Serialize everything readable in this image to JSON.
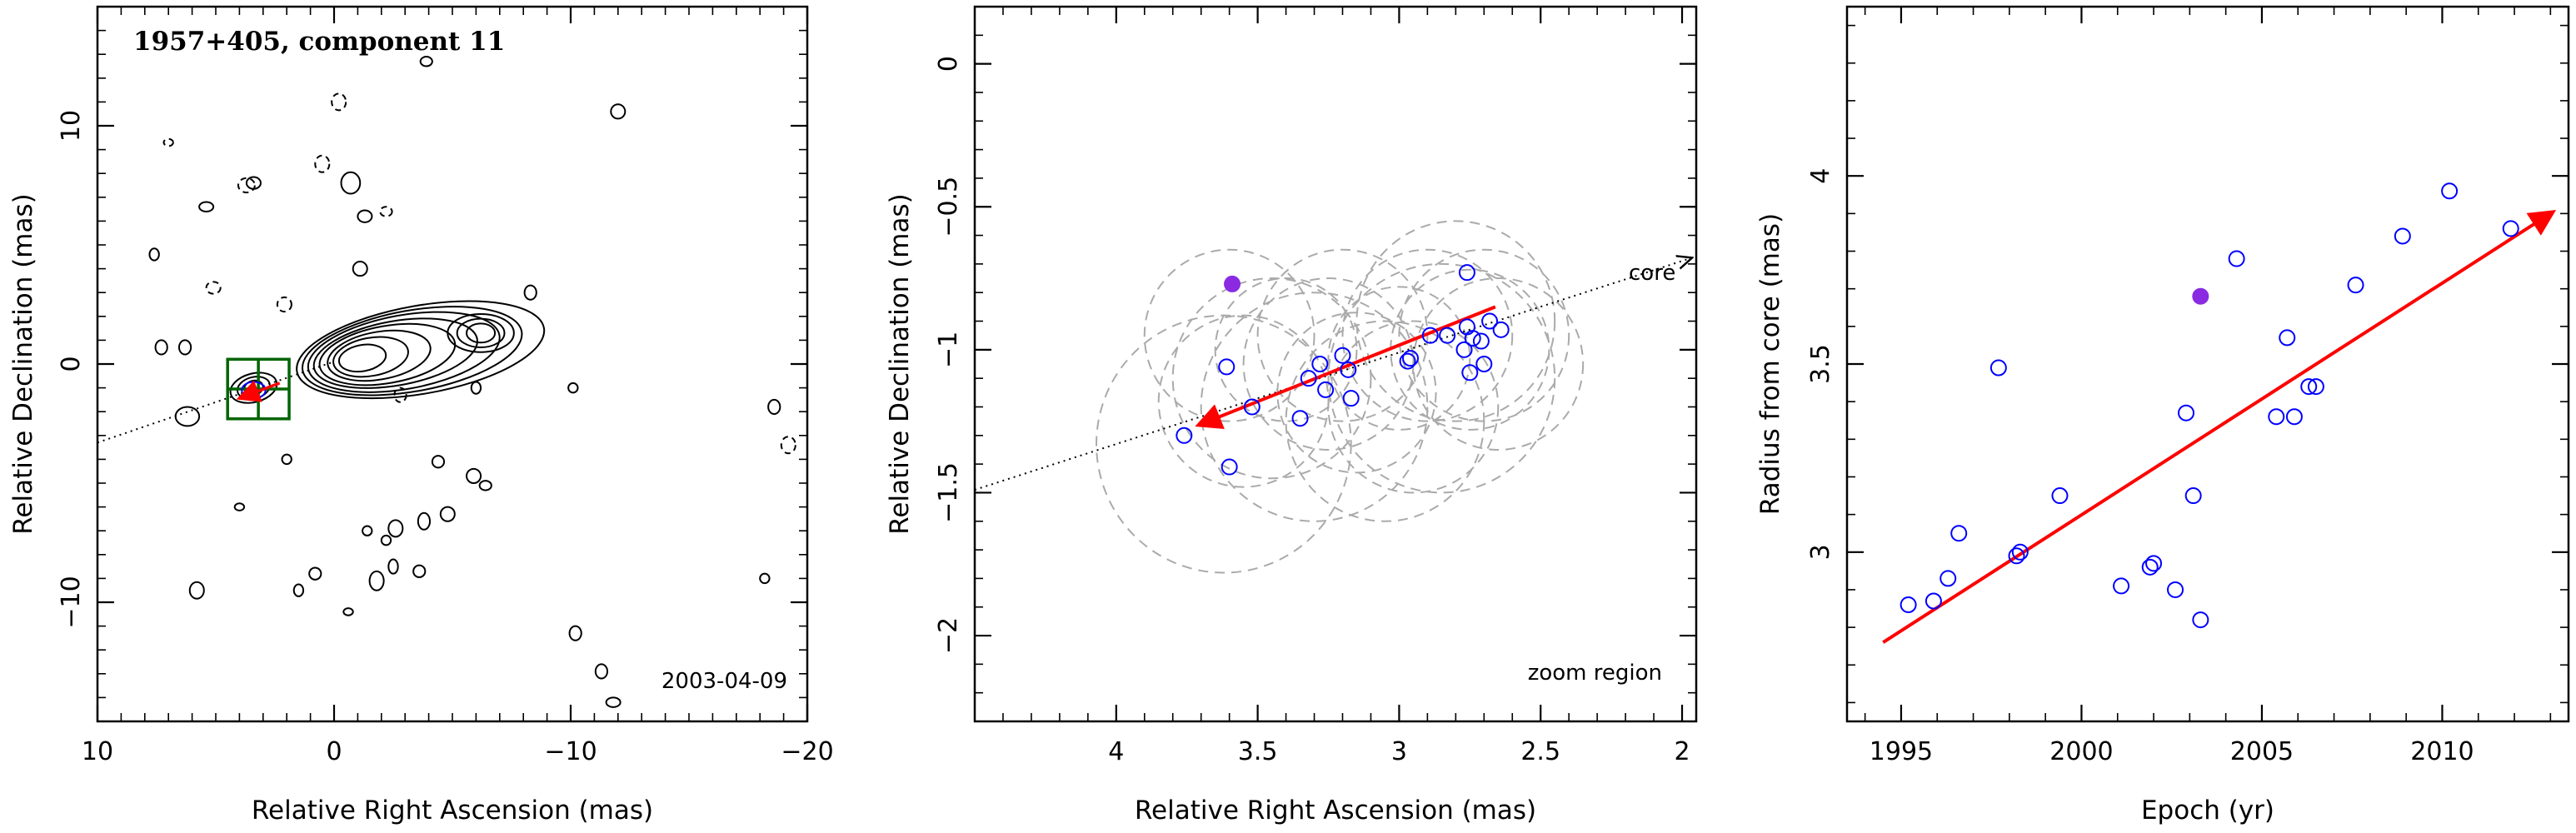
{
  "chart_data": [
    {
      "type": "contour",
      "title": "1957+405, component 11",
      "annotation": "2003-04-09",
      "xlabel": "Relative Right Ascension (mas)",
      "ylabel": "Relative Declination (mas)",
      "xlim": [
        10,
        -20
      ],
      "ylim": [
        -15,
        15
      ],
      "xticks": [
        10,
        0,
        -10,
        -20
      ],
      "yticks": [
        10,
        0,
        -10
      ],
      "colors": {
        "contour": "#000000",
        "box": "#006400",
        "arrow": "#ff0000",
        "component": "#0000ff"
      },
      "zoom_box": {
        "x": [
          4.5,
          1.9
        ],
        "y": [
          -2.3,
          0.2
        ]
      },
      "jet_axis": {
        "x": [
          10,
          0
        ],
        "y": [
          -3.3,
          0.1
        ]
      }
    },
    {
      "type": "scatter",
      "annotation": "zoom region",
      "core_label": "core",
      "xlabel": "Relative Right Ascension (mas)",
      "ylabel": "Relative Declination (mas)",
      "xlim": [
        4.5,
        1.95
      ],
      "ylim": [
        -2.3,
        0.2
      ],
      "xticks": [
        4,
        3.5,
        3,
        2.5,
        2
      ],
      "yticks": [
        0,
        -0.5,
        -1,
        -1.5,
        -2
      ],
      "colors": {
        "points": "#0000ff",
        "outlier": "#8a2be2",
        "arrow": "#ff0000",
        "circles": "#aaaaaa"
      },
      "points": [
        {
          "x": 3.76,
          "y": -1.3
        },
        {
          "x": 3.61,
          "y": -1.06
        },
        {
          "x": 3.6,
          "y": -1.41
        },
        {
          "x": 3.52,
          "y": -1.2
        },
        {
          "x": 3.35,
          "y": -1.24
        },
        {
          "x": 3.32,
          "y": -1.1
        },
        {
          "x": 3.28,
          "y": -1.05
        },
        {
          "x": 3.26,
          "y": -1.14
        },
        {
          "x": 3.2,
          "y": -1.02
        },
        {
          "x": 3.18,
          "y": -1.07
        },
        {
          "x": 3.17,
          "y": -1.17
        },
        {
          "x": 2.97,
          "y": -1.04
        },
        {
          "x": 2.96,
          "y": -1.03
        },
        {
          "x": 2.89,
          "y": -0.95
        },
        {
          "x": 2.83,
          "y": -0.95
        },
        {
          "x": 2.77,
          "y": -1.0
        },
        {
          "x": 2.76,
          "y": -0.92
        },
        {
          "x": 2.75,
          "y": -1.08
        },
        {
          "x": 2.74,
          "y": -0.96
        },
        {
          "x": 2.71,
          "y": -0.97
        },
        {
          "x": 2.7,
          "y": -1.05
        },
        {
          "x": 2.68,
          "y": -0.9
        },
        {
          "x": 2.64,
          "y": -0.93
        },
        {
          "x": 2.76,
          "y": -0.73
        }
      ],
      "outlier": {
        "x": 3.59,
        "y": -0.77
      },
      "arrow": {
        "from": {
          "x": 2.66,
          "y": -0.85
        },
        "to": {
          "x": 3.7,
          "y": -1.26
        }
      },
      "jet_axis": {
        "from": {
          "x": 4.5,
          "y": -1.49
        },
        "to": {
          "x": 1.97,
          "y": -0.68
        }
      },
      "circles": [
        {
          "x": 3.62,
          "y": -1.33,
          "r": 0.45
        },
        {
          "x": 3.55,
          "y": -1.18,
          "r": 0.3
        },
        {
          "x": 3.45,
          "y": -1.1,
          "r": 0.35
        },
        {
          "x": 3.3,
          "y": -1.2,
          "r": 0.4
        },
        {
          "x": 3.25,
          "y": -1.05,
          "r": 0.3
        },
        {
          "x": 3.15,
          "y": -1.15,
          "r": 0.28
        },
        {
          "x": 3.0,
          "y": -1.03,
          "r": 0.25
        },
        {
          "x": 2.9,
          "y": -0.95,
          "r": 0.3
        },
        {
          "x": 2.8,
          "y": -0.9,
          "r": 0.35
        },
        {
          "x": 2.75,
          "y": -1.0,
          "r": 0.28
        },
        {
          "x": 2.7,
          "y": -0.95,
          "r": 0.3
        },
        {
          "x": 2.85,
          "y": -1.1,
          "r": 0.4
        },
        {
          "x": 3.4,
          "y": -1.0,
          "r": 0.25
        },
        {
          "x": 3.6,
          "y": -0.95,
          "r": 0.3
        },
        {
          "x": 3.05,
          "y": -1.25,
          "r": 0.35
        },
        {
          "x": 2.65,
          "y": -1.05,
          "r": 0.3
        },
        {
          "x": 3.2,
          "y": -0.95,
          "r": 0.3
        },
        {
          "x": 2.95,
          "y": -1.2,
          "r": 0.3
        }
      ]
    },
    {
      "type": "scatter",
      "xlabel": "Epoch (yr)",
      "ylabel": "Radius from core (mas)",
      "xlim": [
        1993.5,
        2013.5
      ],
      "ylim": [
        2.55,
        4.45
      ],
      "xticks": [
        1995,
        2000,
        2005,
        2010
      ],
      "yticks": [
        3,
        3.5,
        4
      ],
      "colors": {
        "points": "#0000ff",
        "outlier": "#8a2be2",
        "arrow": "#ff0000"
      },
      "points": [
        {
          "x": 1995.2,
          "y": 2.86
        },
        {
          "x": 1995.9,
          "y": 2.87
        },
        {
          "x": 1996.3,
          "y": 2.93
        },
        {
          "x": 1996.6,
          "y": 3.05
        },
        {
          "x": 1997.7,
          "y": 3.49
        },
        {
          "x": 1998.2,
          "y": 2.99
        },
        {
          "x": 1998.3,
          "y": 3.0
        },
        {
          "x": 1999.4,
          "y": 3.15
        },
        {
          "x": 2001.1,
          "y": 2.91
        },
        {
          "x": 2001.9,
          "y": 2.96
        },
        {
          "x": 2002.0,
          "y": 2.97
        },
        {
          "x": 2002.6,
          "y": 2.9
        },
        {
          "x": 2002.9,
          "y": 3.37
        },
        {
          "x": 2003.1,
          "y": 3.15
        },
        {
          "x": 2003.3,
          "y": 2.82
        },
        {
          "x": 2004.3,
          "y": 3.78
        },
        {
          "x": 2005.4,
          "y": 3.36
        },
        {
          "x": 2005.7,
          "y": 3.57
        },
        {
          "x": 2005.9,
          "y": 3.36
        },
        {
          "x": 2006.3,
          "y": 3.44
        },
        {
          "x": 2006.5,
          "y": 3.44
        },
        {
          "x": 2007.6,
          "y": 3.71
        },
        {
          "x": 2008.9,
          "y": 3.84
        },
        {
          "x": 2010.2,
          "y": 3.96
        },
        {
          "x": 2011.9,
          "y": 3.86
        }
      ],
      "outlier": {
        "x": 2003.3,
        "y": 3.68
      },
      "arrow": {
        "from": {
          "x": 1994.5,
          "y": 2.76
        },
        "to": {
          "x": 2013.0,
          "y": 3.9
        }
      }
    }
  ]
}
